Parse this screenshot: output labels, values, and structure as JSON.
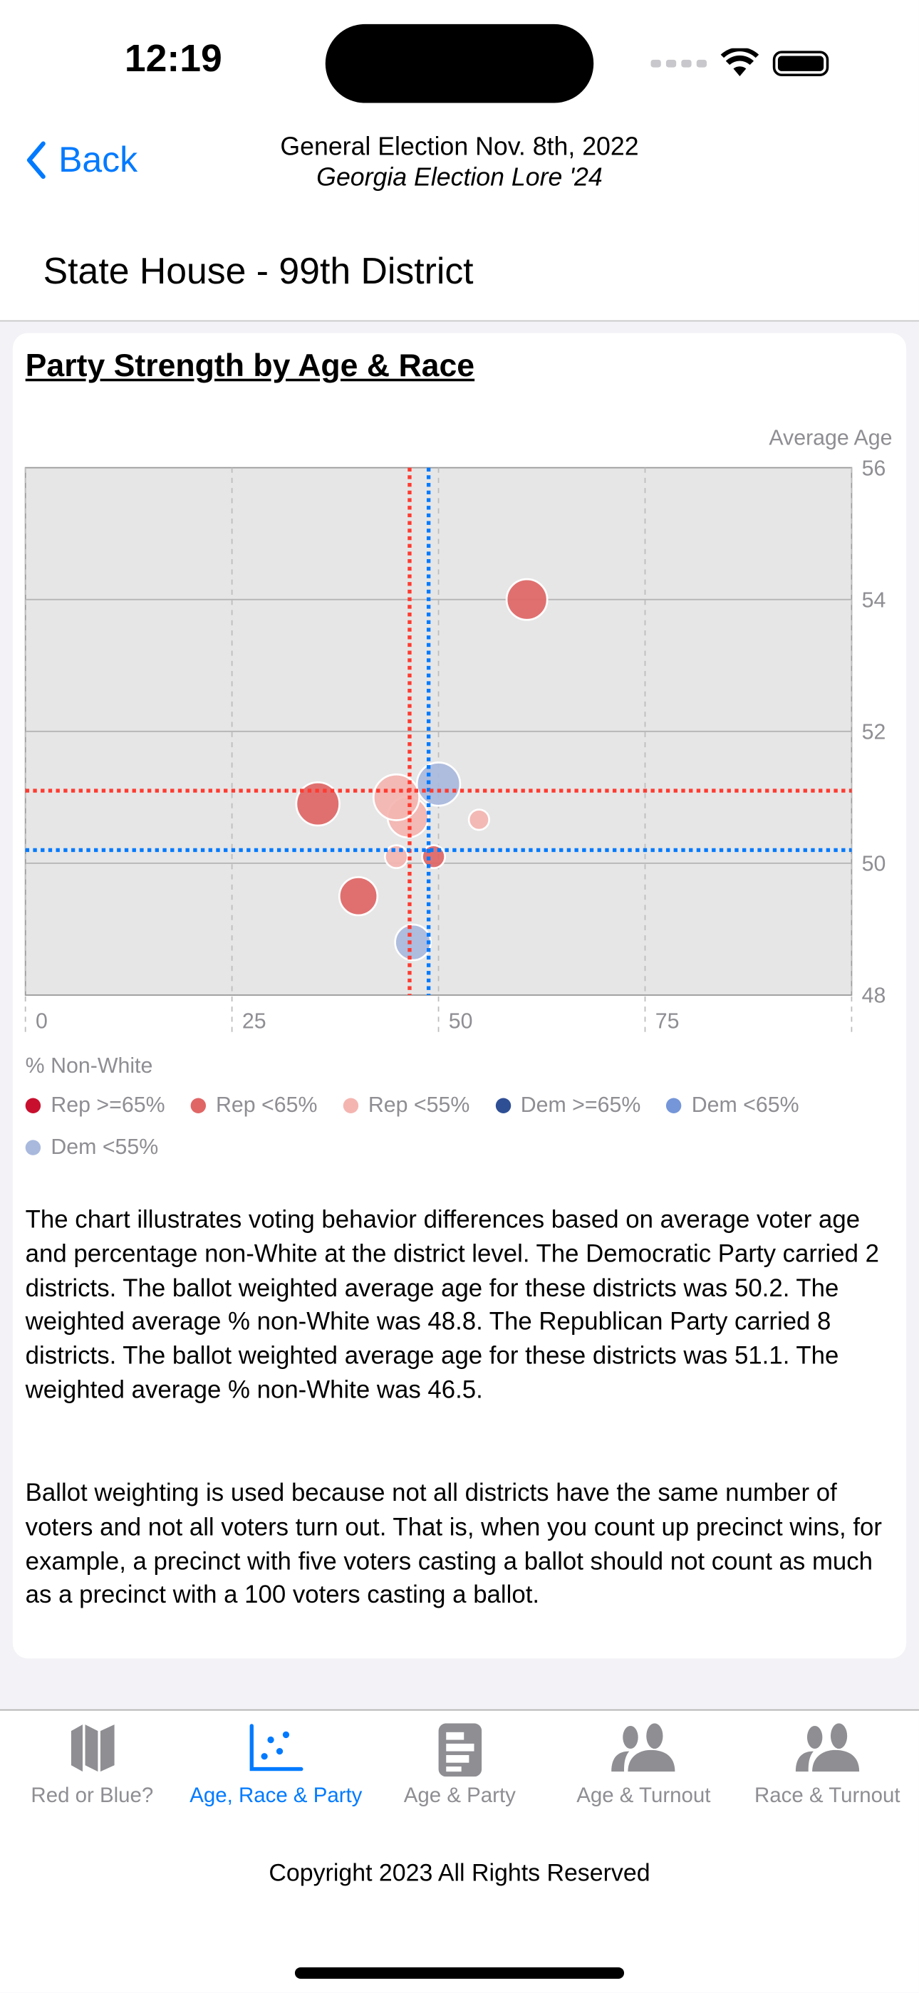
{
  "status_bar": {
    "time": "12:19"
  },
  "nav": {
    "back_label": "Back",
    "title": "General Election Nov. 8th, 2022",
    "subtitle": "Georgia Election Lore '24"
  },
  "district_title": "State House - 99th District",
  "card": {
    "title": "Party Strength by Age & Race"
  },
  "chart_data": {
    "type": "scatter",
    "title": "Party Strength by Age & Race",
    "xlabel": "% Non-White",
    "ylabel": "Average Age",
    "xlim": [
      0,
      100
    ],
    "ylim": [
      48,
      56
    ],
    "x_ticks": [
      0,
      25,
      50,
      75
    ],
    "y_ticks": [
      48,
      50,
      52,
      54,
      56
    ],
    "grid": true,
    "legend_placement": "bottom",
    "legend": [
      {
        "name": "Rep >=65%",
        "color": "#c8102e"
      },
      {
        "name": "Rep <65%",
        "color": "#e06666"
      },
      {
        "name": "Rep <55%",
        "color": "#f4b5b1"
      },
      {
        "name": "Dem >=65%",
        "color": "#2f4f95"
      },
      {
        "name": "Dem <65%",
        "color": "#7596d8"
      },
      {
        "name": "Dem <55%",
        "color": "#a9b9dd"
      }
    ],
    "points": [
      {
        "x": 60.7,
        "y": 54.0,
        "group": "Rep <65%",
        "size": 16
      },
      {
        "x": 35.4,
        "y": 50.9,
        "group": "Rep <65%",
        "size": 17
      },
      {
        "x": 46.3,
        "y": 50.7,
        "group": "Rep <55%",
        "size": 16
      },
      {
        "x": 44.9,
        "y": 51.0,
        "group": "Rep <55%",
        "size": 18
      },
      {
        "x": 50.0,
        "y": 51.2,
        "group": "Dem <55%",
        "size": 17
      },
      {
        "x": 54.9,
        "y": 50.66,
        "group": "Rep <55%",
        "size": 8
      },
      {
        "x": 44.9,
        "y": 50.1,
        "group": "Rep <55%",
        "size": 9
      },
      {
        "x": 49.4,
        "y": 50.1,
        "group": "Rep <65%",
        "size": 9
      },
      {
        "x": 40.3,
        "y": 49.5,
        "group": "Rep <65%",
        "size": 15
      },
      {
        "x": 46.9,
        "y": 48.8,
        "group": "Dem <55%",
        "size": 14
      }
    ],
    "reference_lines": [
      {
        "party": "Rep",
        "axis": "x",
        "value": 46.5,
        "color": "#ff3b30"
      },
      {
        "party": "Dem",
        "axis": "x",
        "value": 48.8,
        "color": "#007aff"
      },
      {
        "party": "Rep",
        "axis": "y",
        "value": 51.1,
        "color": "#ff3b30"
      },
      {
        "party": "Dem",
        "axis": "y",
        "value": 50.2,
        "color": "#007aff"
      }
    ]
  },
  "description": {
    "p1": "The chart illustrates voting behavior differences based on average voter age and percentage non-White at the district level. The Democratic Party carried 2 districts. The ballot weighted average age for these districts was 50.2. The weighted average % non-White was 48.8. The Republican Party carried 8 districts. The ballot weighted average age for these districts was 51.1. The weighted average % non-White was 46.5.",
    "p2": "Ballot weighting is used because not all districts have the same number of voters and not all voters turn out. That is, when you count up precinct wins, for example, a precinct with five voters casting a ballot should not count as much as a precinct with a 100 voters casting a ballot."
  },
  "tabs": [
    {
      "label": "Red or Blue?",
      "icon": "map-icon",
      "active": false
    },
    {
      "label": "Age, Race & Party",
      "icon": "scatter-chart-icon",
      "active": true
    },
    {
      "label": "Age & Party",
      "icon": "list-document-icon",
      "active": false
    },
    {
      "label": "Age & Turnout",
      "icon": "people-icon",
      "active": false
    },
    {
      "label": "Race & Turnout",
      "icon": "people-icon",
      "active": false
    }
  ],
  "colors": {
    "accent": "#007aff",
    "inactive": "#8e8e93"
  },
  "footer": {
    "copyright": "Copyright 2023 All Rights Reserved"
  }
}
